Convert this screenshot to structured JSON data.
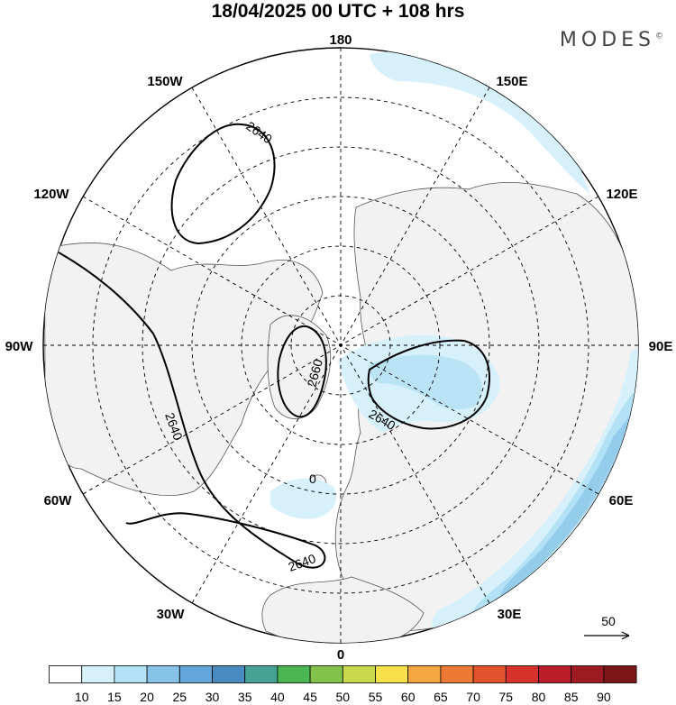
{
  "title": "18/04/2025  00 UTC  + 108 hrs",
  "brand": "MODES",
  "brand_mark": "©",
  "longitude_labels": {
    "top": "180",
    "top_left": "150W",
    "top_right": "150E",
    "upper_left": "120W",
    "upper_right": "120E",
    "left": "90W",
    "right": "90E",
    "lower_left": "60W",
    "lower_right": "60E",
    "bottom_left": "30W",
    "bottom_right": "30E",
    "bottom": "0"
  },
  "contour_labels": {
    "c1": "2640",
    "c2": "2660",
    "c3": "2640",
    "c4": "2640",
    "c5": "2640",
    "c6": "0"
  },
  "wind_reference": "50",
  "colorbar": {
    "ticks": [
      "10",
      "15",
      "20",
      "25",
      "30",
      "35",
      "40",
      "45",
      "50",
      "55",
      "60",
      "65",
      "70",
      "75",
      "80",
      "85",
      "90"
    ],
    "colors": [
      "#ffffff",
      "#d6f1fb",
      "#b3e1f5",
      "#87c3e8",
      "#64a6d9",
      "#4a8cc1",
      "#46a394",
      "#4bb553",
      "#83c34b",
      "#c7d94a",
      "#f7e04c",
      "#f3a740",
      "#ec7a34",
      "#e2532c",
      "#d4322b",
      "#b81f28",
      "#9c1a22",
      "#7a1518"
    ]
  }
}
